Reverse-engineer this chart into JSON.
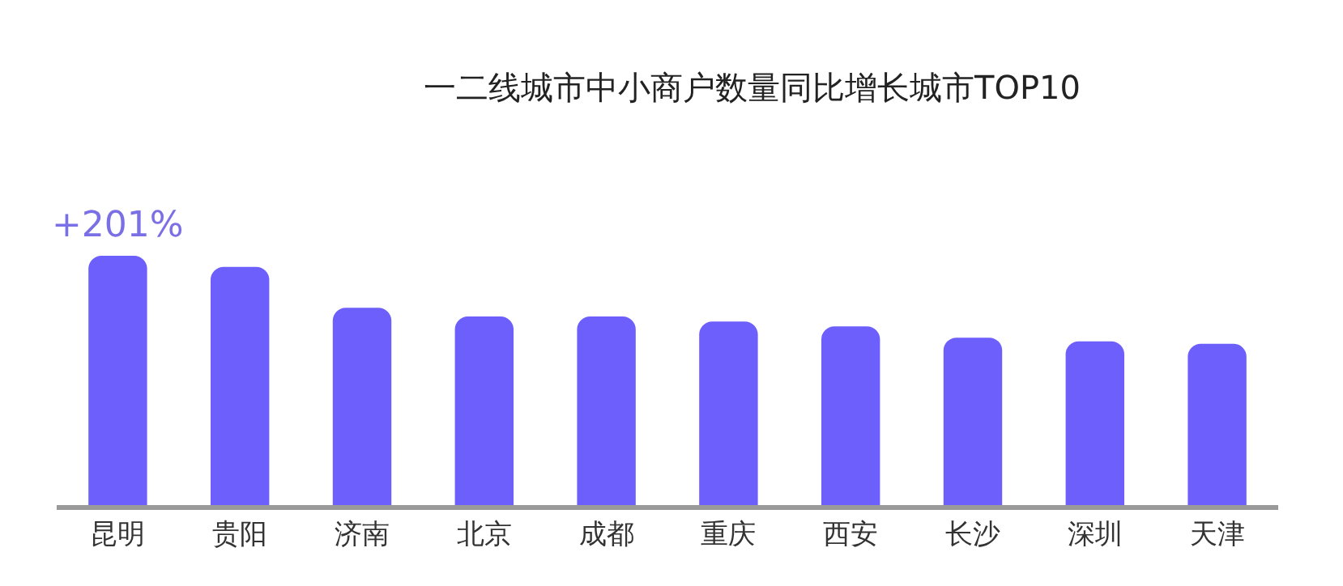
{
  "chart_data": {
    "type": "bar",
    "title": "一二线城市中小商户数量同比增长城市TOP10",
    "categories": [
      "昆明",
      "贵阳",
      "济南",
      "北京",
      "成都",
      "重庆",
      "西安",
      "长沙",
      "深圳",
      "天津"
    ],
    "values": [
      201,
      192,
      159,
      152,
      152,
      148,
      144,
      135,
      132,
      130
    ],
    "value_labels": [
      "+201%",
      null,
      null,
      null,
      null,
      null,
      null,
      null,
      null,
      null
    ],
    "color": "#6c5ffb",
    "grid": false,
    "tick_labels": "x"
  }
}
